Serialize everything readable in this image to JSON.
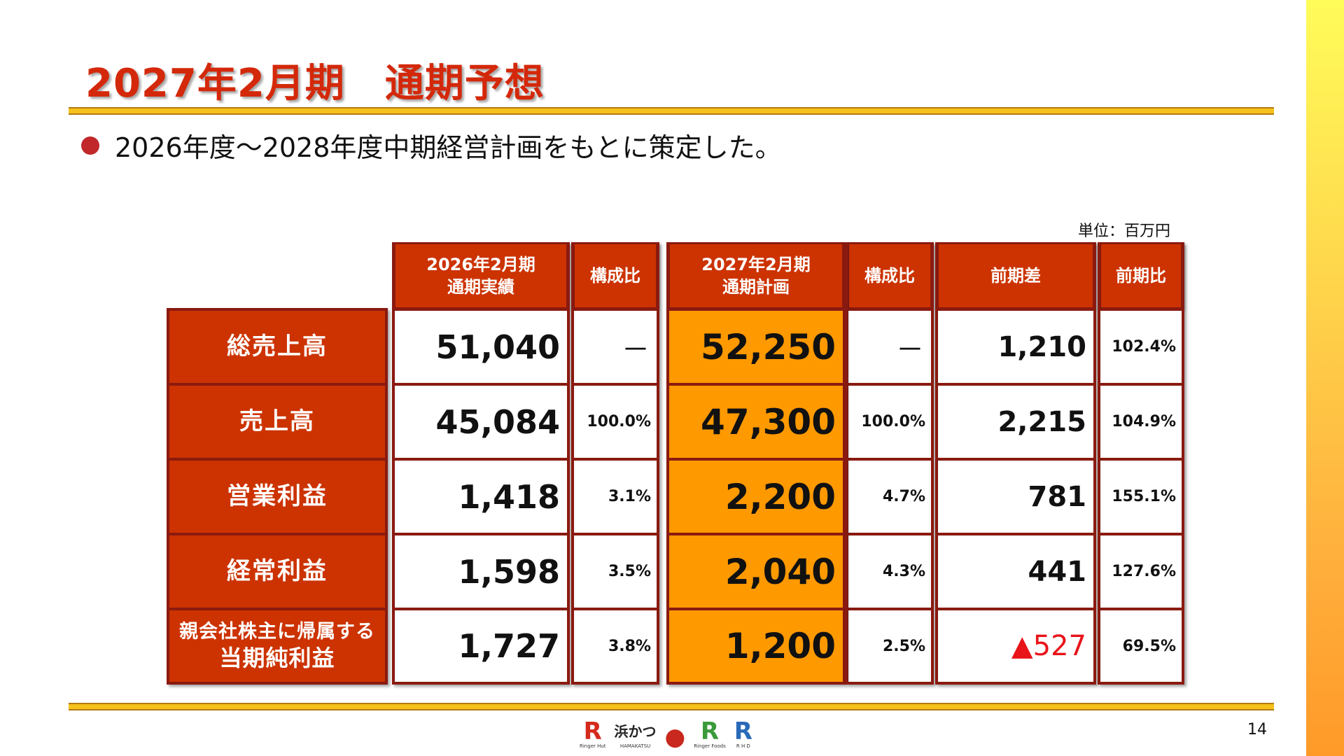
{
  "slide": {
    "title": "2027年2月期　通期予想",
    "bullet": "2026年度～2028年度中期経営計画をもとに策定した。",
    "unit": "単位：百万円",
    "page_number": "14"
  },
  "table": {
    "headers": {
      "actual_line1": "2026年2月期",
      "actual_line2": "通期実績",
      "ratio1": "構成比",
      "plan_line1": "2027年2月期",
      "plan_line2": "通期計画",
      "ratio2": "構成比",
      "diff": "前期差",
      "yoy": "前期比"
    },
    "rows": [
      {
        "label": "総売上高",
        "actual": "51,040",
        "ratio1": "－",
        "plan": "52,250",
        "ratio2": "－",
        "diff": "1,210",
        "yoy": "102.4%"
      },
      {
        "label": "売上高",
        "actual": "45,084",
        "ratio1": "100.0%",
        "plan": "47,300",
        "ratio2": "100.0%",
        "diff": "2,215",
        "yoy": "104.9%"
      },
      {
        "label": "営業利益",
        "actual": "1,418",
        "ratio1": "3.1%",
        "plan": "2,200",
        "ratio2": "4.7%",
        "diff": "781",
        "yoy": "155.1%"
      },
      {
        "label": "経常利益",
        "actual": "1,598",
        "ratio1": "3.5%",
        "plan": "2,040",
        "ratio2": "4.3%",
        "diff": "441",
        "yoy": "127.6%"
      },
      {
        "label_line1": "親会社株主に帰属する",
        "label_line2": "当期純利益",
        "actual": "1,727",
        "ratio1": "3.8%",
        "plan": "1,200",
        "ratio2": "2.5%",
        "diff": "▲527",
        "yoy": "69.5%"
      }
    ]
  },
  "footer_logos": [
    {
      "mark": "R",
      "caption": "Ringer Hut",
      "color": "#d42a1c",
      "icon": "ringer-hut-logo"
    },
    {
      "mark": "浜かつ",
      "caption": "HAMAKATSU",
      "color": "#222222",
      "icon": "hamakatsu-logo"
    },
    {
      "mark": "●",
      "caption": "",
      "color": "#c8281e",
      "icon": "round-seal-logo"
    },
    {
      "mark": "R",
      "caption": "Ringer Foods",
      "color": "#3a9a3a",
      "icon": "ringer-foods-logo"
    },
    {
      "mark": "R",
      "caption": "R H D",
      "color": "#2a6ab8",
      "icon": "rhd-logo"
    }
  ],
  "colors": {
    "title_red": "#d4280a",
    "header_red": "#cc3300",
    "plan_orange": "#ff9900",
    "rule_gold": "#f6c11a",
    "negative_red": "#e8141a"
  }
}
